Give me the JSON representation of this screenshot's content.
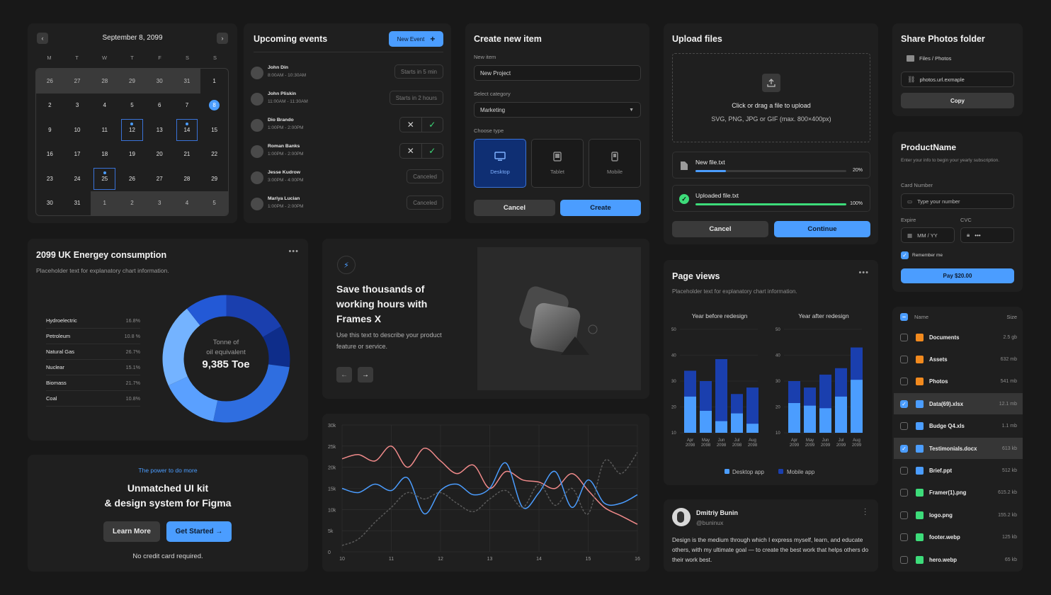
{
  "calendar": {
    "title": "September 8, 2099",
    "weekdays": [
      "M",
      "T",
      "W",
      "T",
      "F",
      "S",
      "S"
    ],
    "days": [
      {
        "n": "26",
        "o": 1
      },
      {
        "n": "27",
        "o": 1
      },
      {
        "n": "28",
        "o": 1
      },
      {
        "n": "29",
        "o": 1
      },
      {
        "n": "30",
        "o": 1
      },
      {
        "n": "31",
        "o": 1
      },
      {
        "n": "1"
      },
      {
        "n": "2"
      },
      {
        "n": "3"
      },
      {
        "n": "4"
      },
      {
        "n": "5"
      },
      {
        "n": "6"
      },
      {
        "n": "7"
      },
      {
        "n": "8",
        "today": 1
      },
      {
        "n": "9"
      },
      {
        "n": "10"
      },
      {
        "n": "11"
      },
      {
        "n": "12",
        "sel": 1,
        "dot": 1
      },
      {
        "n": "13"
      },
      {
        "n": "14",
        "sel": 1,
        "dot": 1
      },
      {
        "n": "15"
      },
      {
        "n": "16"
      },
      {
        "n": "17"
      },
      {
        "n": "18"
      },
      {
        "n": "19"
      },
      {
        "n": "20"
      },
      {
        "n": "21"
      },
      {
        "n": "22"
      },
      {
        "n": "23"
      },
      {
        "n": "24"
      },
      {
        "n": "25",
        "sel": 1,
        "dot": 1
      },
      {
        "n": "26"
      },
      {
        "n": "27"
      },
      {
        "n": "28"
      },
      {
        "n": "29"
      },
      {
        "n": "30"
      },
      {
        "n": "31"
      },
      {
        "n": "1",
        "o": 1
      },
      {
        "n": "2",
        "o": 1
      },
      {
        "n": "3",
        "o": 1
      },
      {
        "n": "4",
        "o": 1
      },
      {
        "n": "5",
        "o": 1
      }
    ]
  },
  "events": {
    "title": "Upcoming events",
    "new_label": "New Event",
    "items": [
      {
        "name": "John Din",
        "time": "8:00AM - 10:30AM",
        "status": "Starts in 5 min",
        "kind": "pill"
      },
      {
        "name": "John Pliskin",
        "time": "11:00AM - 11:30AM",
        "status": "Starts in 2 hours",
        "kind": "pill"
      },
      {
        "name": "Dio Brando",
        "time": "1:00PM - 2:00PM",
        "status": "",
        "kind": "actions"
      },
      {
        "name": "Roman Banks",
        "time": "1:00PM - 2:00PM",
        "status": "",
        "kind": "actions"
      },
      {
        "name": "Jesse Kudrow",
        "time": "3:00PM - 4:00PM",
        "status": "Canceled",
        "kind": "pill"
      },
      {
        "name": "Mariya Lucian",
        "time": "1:00PM - 2:00PM",
        "status": "Canceled",
        "kind": "pill"
      }
    ]
  },
  "create": {
    "title": "Create new item",
    "item_label": "New item",
    "item_value": "New Project",
    "cat_label": "Select category",
    "cat_value": "Marketing",
    "type_label": "Choose type",
    "types": [
      "Desktop",
      "Tablet",
      "Mobile"
    ],
    "cancel": "Cancel",
    "create": "Create"
  },
  "upload": {
    "title": "Upload files",
    "drop1": "Click or drag a file to upload",
    "drop2": "SVG, PNG, JPG or GIF (max. 800×400px)",
    "files": [
      {
        "name": "New file.txt",
        "pct": "20%",
        "progress": 0.2
      },
      {
        "name": "Uploaded file.txt",
        "pct": "100%",
        "progress": 1.0
      }
    ],
    "cancel": "Cancel",
    "continue": "Continue"
  },
  "share": {
    "title": "Share Photos folder",
    "path": "Files / Photos",
    "url": "photos.url.exmaple",
    "copy": "Copy"
  },
  "pay": {
    "title": "ProductName",
    "desc": "Enter your info to begin your yearly subscription.",
    "card_label": "Card Number",
    "card_ph": "Type your number",
    "exp_label": "Expire",
    "exp_ph": "MM / YY",
    "cvc_label": "CVC",
    "cvc_ph": "•••",
    "remember": "Remember me",
    "pay": "Pay $20.00"
  },
  "donut": {
    "title": "2099 UK Energey consumption",
    "subtitle": "Placeholder text for explanatory chart information.",
    "center1": "Tonne of",
    "center2": "oil equivalent",
    "center_value": "9,385 Toe"
  },
  "promo": {
    "title": "Save thousands of working hours with Frames X",
    "desc": "Use this text to describe your product feature or service."
  },
  "kit": {
    "eyebrow": "The power to do more",
    "title1": "Unmatched UI kit",
    "title2": "& design system for Figma",
    "learn": "Learn More",
    "start": "Get Started →",
    "note": "No credit card required."
  },
  "pageviews": {
    "title": "Page views",
    "subtitle": "Placeholder text for explanatory chart information.",
    "legend_desktop": "Desktop app",
    "legend_mobile": "Mobile app"
  },
  "tweet": {
    "name": "Dmitriy Bunin",
    "handle": "@buninux",
    "text": "Design is the medium through which I express myself, learn, and educate others, with my ultimate goal — to create the best work that helps others do their work best."
  },
  "files": {
    "col_name": "Name",
    "col_size": "Size",
    "items": [
      {
        "name": "Documents",
        "size": "2.5 gb",
        "type": "folder",
        "checked": false
      },
      {
        "name": "Assets",
        "size": "632 mb",
        "type": "folder",
        "checked": false
      },
      {
        "name": "Photos",
        "size": "541 mb",
        "type": "folder",
        "checked": false
      },
      {
        "name": "Data(69).xlsx",
        "size": "12.1 mb",
        "type": "doc",
        "checked": true
      },
      {
        "name": "Budge Q4.xls",
        "size": "1.1 mb",
        "type": "doc",
        "checked": false
      },
      {
        "name": "Testimonials.docx",
        "size": "613 kb",
        "type": "doc",
        "checked": true
      },
      {
        "name": "Brief.ppt",
        "size": "512 kb",
        "type": "doc",
        "checked": false
      },
      {
        "name": "Framer(1).png",
        "size": "615.2 kb",
        "type": "img",
        "checked": false
      },
      {
        "name": "logo.png",
        "size": "155.2 kb",
        "type": "img",
        "checked": false
      },
      {
        "name": "footer.webp",
        "size": "125 kb",
        "type": "img",
        "checked": false
      },
      {
        "name": "hero.webp",
        "size": "65 kb",
        "type": "img",
        "checked": false
      }
    ]
  },
  "colors": {
    "accent": "#4b9dff",
    "dark_blue": "#1a3fae",
    "green": "#3ddc7a",
    "orange": "#f28a1e",
    "red_line": "#f08a8a"
  },
  "chart_data": [
    {
      "type": "pie",
      "title": "2099 UK Energey consumption",
      "categories": [
        "Hydroelectric",
        "Petroleum",
        "Natural Gas",
        "Nuclear",
        "Biomass",
        "Coal"
      ],
      "labels": [
        "16.8%",
        "10.8 %",
        "26.7%",
        "15.1%",
        "21.7%",
        "10.8%"
      ],
      "values": [
        16.8,
        10.8,
        26.7,
        15.1,
        21.7,
        10.8
      ],
      "colors": [
        "#1a3fae",
        "#0e2d8a",
        "#2f6ee0",
        "#5aa0ff",
        "#74b3ff",
        "#2359d6"
      ]
    },
    {
      "type": "bar",
      "title": "Year before redesign",
      "categories": [
        "Apr\n2098",
        "May\n2098",
        "Jun\n2098",
        "Jul\n2098",
        "Aug\n2098"
      ],
      "ylim": [
        10,
        50
      ],
      "yticks": [
        10,
        20,
        30,
        40,
        50
      ],
      "series": [
        {
          "name": "Desktop app",
          "values": [
            24,
            18.5,
            14.5,
            17.5,
            13.5
          ]
        },
        {
          "name": "Mobile app",
          "values": [
            34,
            30,
            38.5,
            25,
            27.5
          ]
        }
      ]
    },
    {
      "type": "bar",
      "title": "Year after redesign",
      "categories": [
        "Apr\n2099",
        "May\n2099",
        "Jun\n2099",
        "Jul\n2099",
        "Aug\n2099"
      ],
      "ylim": [
        10,
        50
      ],
      "yticks": [
        10,
        20,
        30,
        40,
        50
      ],
      "series": [
        {
          "name": "Desktop app",
          "values": [
            21.5,
            20.5,
            19.5,
            24,
            30.5
          ]
        },
        {
          "name": "Mobile app",
          "values": [
            30,
            27.5,
            32.5,
            35,
            43
          ]
        }
      ]
    },
    {
      "type": "line",
      "x": [
        10,
        10.33,
        10.67,
        11,
        11.33,
        11.67,
        12,
        12.33,
        12.67,
        13,
        13.33,
        13.67,
        14,
        14.33,
        14.67,
        15,
        15.33,
        15.67,
        16
      ],
      "xticks": [
        10,
        11,
        12,
        13,
        14,
        15,
        16
      ],
      "ylim": [
        0,
        30000
      ],
      "yticks": [
        "0",
        "5k",
        "10k",
        "15k",
        "20k",
        "25k",
        "30k"
      ],
      "series": [
        {
          "color": "#f08a8a",
          "values": [
            22000,
            23000,
            21500,
            25000,
            20000,
            24500,
            21500,
            18500,
            20500,
            15000,
            19000,
            17000,
            16500,
            15000,
            18500,
            14500,
            10500,
            8500,
            6500
          ]
        },
        {
          "color": "#4b9dff",
          "values": [
            15000,
            14000,
            16000,
            14500,
            17500,
            9000,
            14500,
            16000,
            13500,
            15000,
            21000,
            10500,
            14000,
            19000,
            10500,
            17000,
            11500,
            11500,
            13500
          ]
        },
        {
          "color": "#5a5a5a",
          "values": [
            1500,
            3000,
            7000,
            10500,
            14000,
            12500,
            14000,
            11500,
            9500,
            12500,
            14500,
            10500,
            16000,
            11000,
            15000,
            9000,
            21500,
            18500,
            23500
          ]
        }
      ]
    }
  ]
}
